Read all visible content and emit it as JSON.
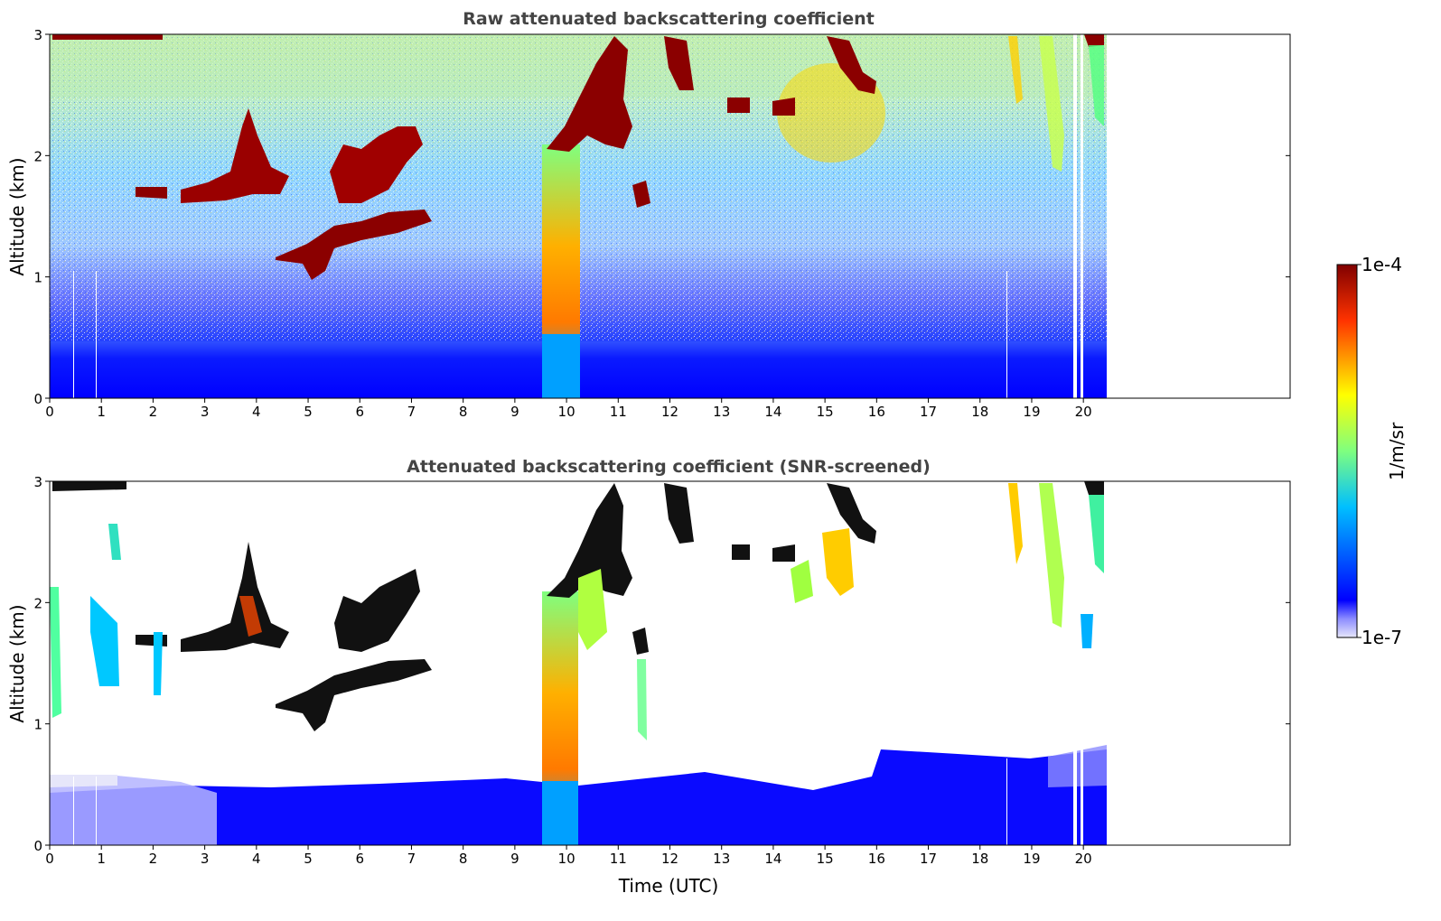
{
  "chart_data": [
    {
      "type": "heatmap",
      "title": "Raw attenuated backscattering coefficient",
      "xlabel": "",
      "ylabel": "Altitude (km)",
      "xlim": [
        0,
        24
      ],
      "ylim": [
        0,
        3
      ],
      "x_ticks": [
        "0",
        "1",
        "2",
        "3",
        "4",
        "5",
        "6",
        "7",
        "8",
        "9",
        "10",
        "11",
        "12",
        "13",
        "14",
        "15",
        "16",
        "17",
        "18",
        "19",
        "20"
      ],
      "y_ticks": [
        "0",
        "1",
        "2",
        "3"
      ],
      "data_end_time": 20.5,
      "colormap": "jet",
      "scale": "log",
      "features": [
        {
          "kind": "boundary_layer",
          "t": [
            0,
            20.5
          ],
          "alt_top": [
            0.45,
            0.45
          ],
          "level": "low"
        },
        {
          "kind": "cloud",
          "t": [
            1.7,
            3.5
          ],
          "alt": [
            1.6,
            1.75
          ],
          "level": "high"
        },
        {
          "kind": "cloud",
          "t": [
            3.0,
            4.7
          ],
          "alt": [
            1.6,
            2.5
          ],
          "level": "high"
        },
        {
          "kind": "cloud",
          "t": [
            4.3,
            7.4
          ],
          "alt": [
            0.95,
            1.6
          ],
          "level": "high"
        },
        {
          "kind": "cloud",
          "t": [
            5.5,
            7.2
          ],
          "alt": [
            1.6,
            2.3
          ],
          "level": "high"
        },
        {
          "kind": "precipitation",
          "t": [
            9.55,
            10.3
          ],
          "alt": [
            0,
            2.1
          ],
          "level": "mid"
        },
        {
          "kind": "cloud",
          "t": [
            9.8,
            13.8
          ],
          "alt": [
            1.5,
            3.0
          ],
          "level": "high"
        },
        {
          "kind": "cloud",
          "t": [
            14.0,
            16.0
          ],
          "alt": [
            2.3,
            3.0
          ],
          "level": "high"
        },
        {
          "kind": "virga",
          "t": [
            18.6,
            20.5
          ],
          "alt": [
            2.0,
            3.0
          ],
          "level": "mid"
        }
      ]
    },
    {
      "type": "heatmap",
      "title": "Attenuated backscattering coefficient (SNR-screened)",
      "xlabel": "Time (UTC)",
      "ylabel": "Altitude (km)",
      "xlim": [
        0,
        24
      ],
      "ylim": [
        0,
        3
      ],
      "x_ticks": [
        "0",
        "1",
        "2",
        "3",
        "4",
        "5",
        "6",
        "7",
        "8",
        "9",
        "10",
        "11",
        "12",
        "13",
        "14",
        "15",
        "16",
        "17",
        "18",
        "19",
        "20"
      ],
      "y_ticks": [
        "0",
        "1",
        "2",
        "3"
      ],
      "data_end_time": 20.5,
      "colormap": "jet",
      "scale": "log",
      "saturated_color": "#000000"
    }
  ],
  "colorbar": {
    "label": "1/m/sr",
    "max_label": "1e-4",
    "min_label": "1e-7",
    "min_value": 1e-07,
    "max_value": 0.0001,
    "stops": [
      "#e6e6fa",
      "#0000ff",
      "#00bfff",
      "#7fff7f",
      "#ffff00",
      "#ff3300",
      "#800000"
    ]
  }
}
